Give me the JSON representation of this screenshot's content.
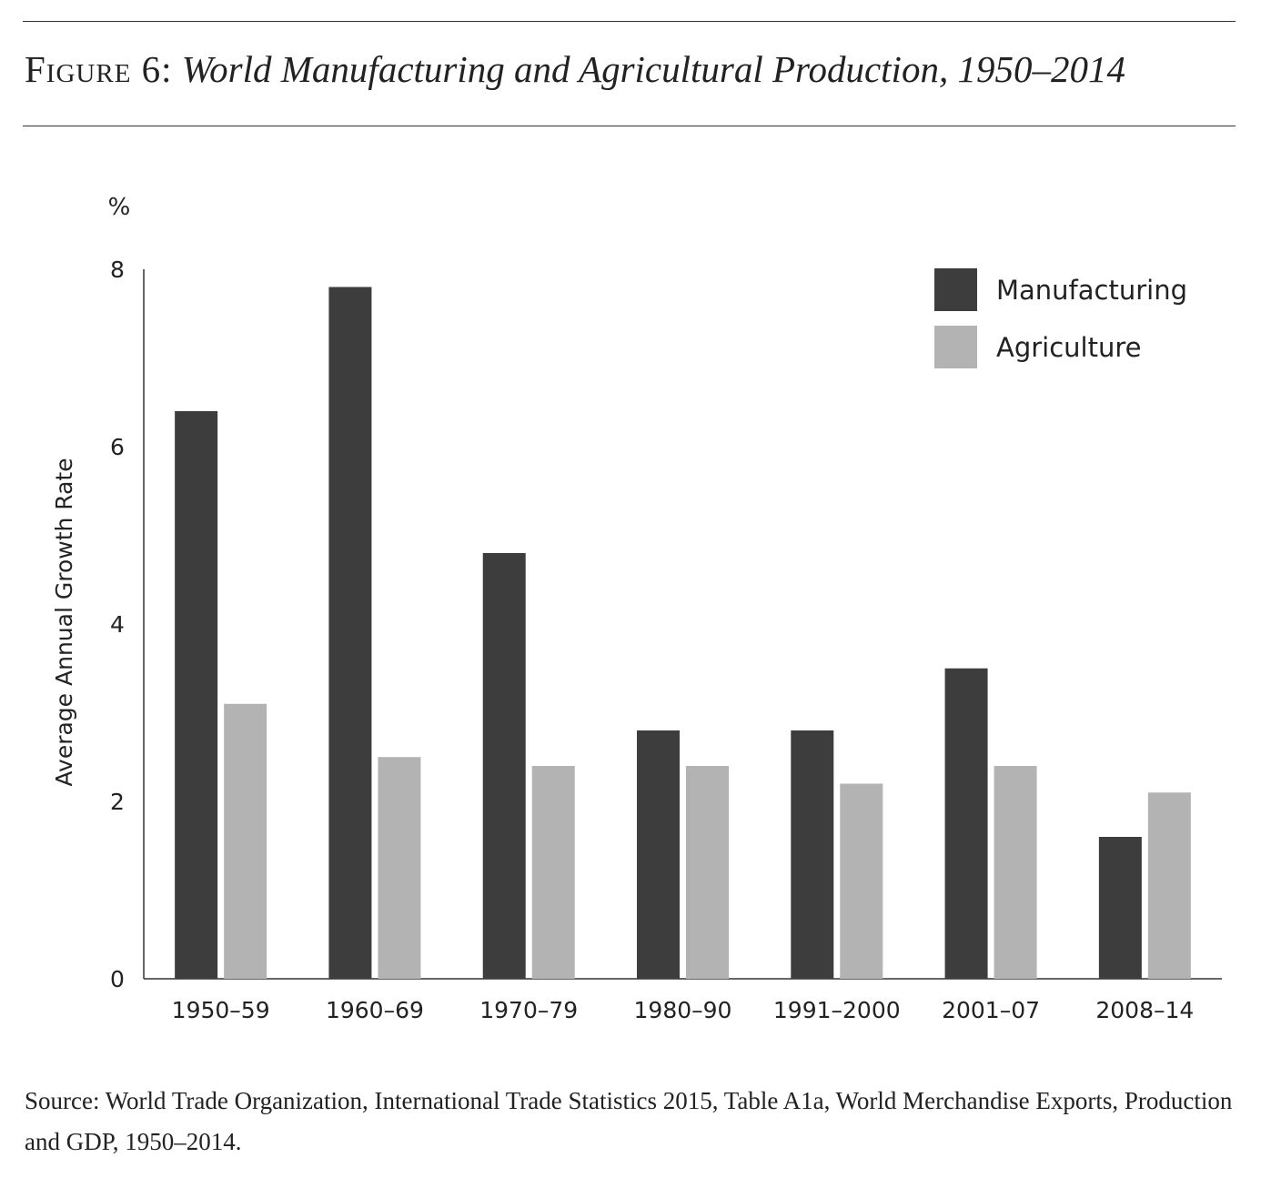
{
  "figure": {
    "label": "Figure 6:",
    "title": "World Manufacturing and Agricultural Production, 1950–2014"
  },
  "source": {
    "text": "Source: World Trade Organization, International Trade Statistics 2015, Table A1a, World Merchandise Exports, Production and GDP, 1950–2014."
  },
  "chart_data": {
    "type": "bar",
    "title": "World Manufacturing and Agricultural Production, 1950–2014",
    "xlabel": "",
    "ylabel": "Average Annual Growth Rate",
    "y_unit": "%",
    "ylim": [
      0,
      8
    ],
    "yticks": [
      0,
      2,
      4,
      6,
      8
    ],
    "grid": false,
    "legend_position": "top-right",
    "categories": [
      "1950–59",
      "1960–69",
      "1970–79",
      "1980–90",
      "1991–2000",
      "2001–07",
      "2008–14"
    ],
    "series": [
      {
        "name": "Manufacturing",
        "color": "#3d3d3d",
        "values": [
          6.4,
          7.8,
          4.8,
          2.8,
          2.8,
          3.5,
          1.6
        ]
      },
      {
        "name": "Agriculture",
        "color": "#b3b3b3",
        "values": [
          3.1,
          2.5,
          2.4,
          2.4,
          2.2,
          2.4,
          2.1
        ]
      }
    ]
  }
}
